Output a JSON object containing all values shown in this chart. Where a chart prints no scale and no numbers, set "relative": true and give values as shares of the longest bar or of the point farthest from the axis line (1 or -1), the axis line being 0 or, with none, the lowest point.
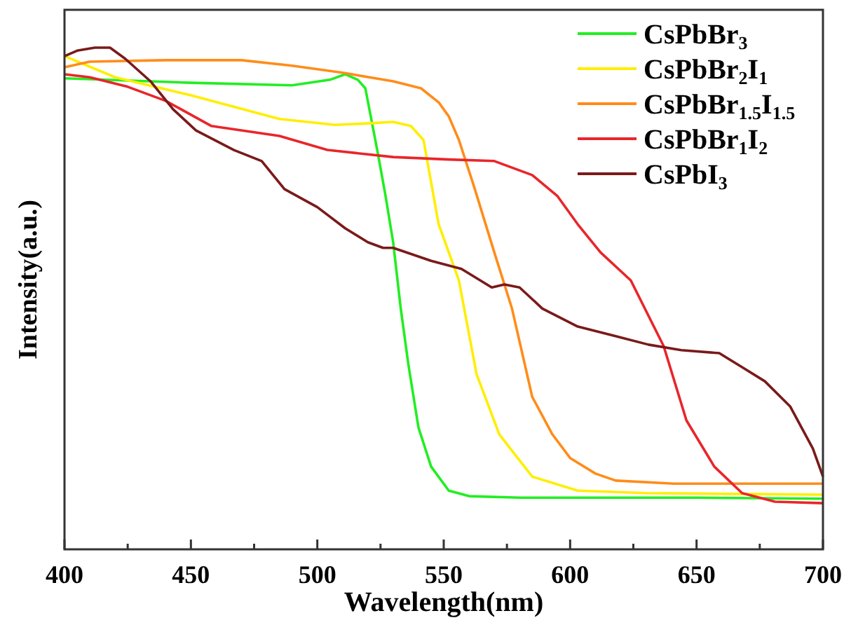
{
  "chart_data": {
    "type": "line",
    "relative": true,
    "xlabel": "Wavelength(nm)",
    "ylabel": "Intensity(a.u.)",
    "xlim": [
      400,
      700
    ],
    "xticks": [
      400,
      {
        "value": 425,
        "label": null
      },
      450,
      {
        "value": 475,
        "label": null
      },
      500,
      {
        "value": 525,
        "label": null
      },
      550,
      {
        "value": 575,
        "label": null
      },
      600,
      {
        "value": 625,
        "label": null
      },
      650,
      {
        "value": 675,
        "label": null
      },
      700
    ],
    "legend": "top right",
    "grid": false,
    "marker": "none",
    "line_style": "solid",
    "series": [
      {
        "name": "CsPbBr$_{3}$",
        "color": "#22ee22",
        "x": [
          400,
          450,
          490,
          505,
          511,
          516,
          519,
          524,
          527,
          530,
          533,
          536,
          540,
          545,
          552,
          560,
          580,
          650,
          700
        ],
        "values": [
          0.939,
          0.93,
          0.925,
          0.936,
          0.947,
          0.936,
          0.919,
          0.788,
          0.704,
          0.612,
          0.48,
          0.369,
          0.243,
          0.165,
          0.117,
          0.106,
          0.103,
          0.103,
          0.101
        ]
      },
      {
        "name": "CsPbBr$_{2}$I$_{1}$",
        "color": "#ffee00",
        "x": [
          400,
          420,
          450,
          485,
          507,
          520,
          530,
          537,
          542,
          548,
          556,
          563,
          572,
          585,
          603,
          630,
          700
        ],
        "values": [
          0.983,
          0.941,
          0.905,
          0.858,
          0.846,
          0.849,
          0.852,
          0.844,
          0.816,
          0.648,
          0.536,
          0.349,
          0.229,
          0.145,
          0.117,
          0.112,
          0.109
        ]
      },
      {
        "name": "CsPbBr$_{1.5}$I$_{1.5}$",
        "color": "#ff8c1a",
        "x": [
          400,
          410,
          440,
          470,
          490,
          510,
          530,
          541,
          548,
          552,
          556,
          562,
          570,
          577,
          585,
          593,
          600,
          610,
          618,
          641,
          700
        ],
        "values": [
          0.961,
          0.972,
          0.975,
          0.975,
          0.964,
          0.95,
          0.933,
          0.919,
          0.891,
          0.863,
          0.816,
          0.723,
          0.592,
          0.48,
          0.304,
          0.229,
          0.182,
          0.151,
          0.137,
          0.131,
          0.131
        ]
      },
      {
        "name": "CsPbBr$_{1}$I$_{2}$",
        "color": "#e8262a",
        "x": [
          400,
          410,
          425,
          440,
          458,
          485,
          504,
          530,
          552,
          570,
          585,
          595,
          603,
          612,
          624,
          637,
          646,
          657,
          668,
          681,
          700
        ],
        "values": [
          0.947,
          0.941,
          0.922,
          0.894,
          0.844,
          0.824,
          0.796,
          0.782,
          0.777,
          0.774,
          0.746,
          0.704,
          0.648,
          0.592,
          0.536,
          0.405,
          0.257,
          0.165,
          0.112,
          0.095,
          0.092
        ]
      },
      {
        "name": "CsPbI$_{3}$",
        "color": "#7a1a1a",
        "x": [
          400,
          405,
          412,
          418,
          424,
          434,
          443,
          452,
          467,
          478,
          487,
          500,
          511,
          520,
          526,
          530,
          545,
          557,
          569,
          574,
          580,
          589,
          603,
          618,
          631,
          644,
          659,
          668,
          677,
          687,
          696,
          700
        ],
        "values": [
          0.983,
          0.994,
          1.0,
          1.0,
          0.978,
          0.933,
          0.877,
          0.835,
          0.796,
          0.774,
          0.718,
          0.682,
          0.64,
          0.612,
          0.601,
          0.601,
          0.575,
          0.559,
          0.522,
          0.528,
          0.522,
          0.48,
          0.444,
          0.425,
          0.408,
          0.397,
          0.391,
          0.363,
          0.335,
          0.285,
          0.201,
          0.145
        ]
      }
    ]
  }
}
